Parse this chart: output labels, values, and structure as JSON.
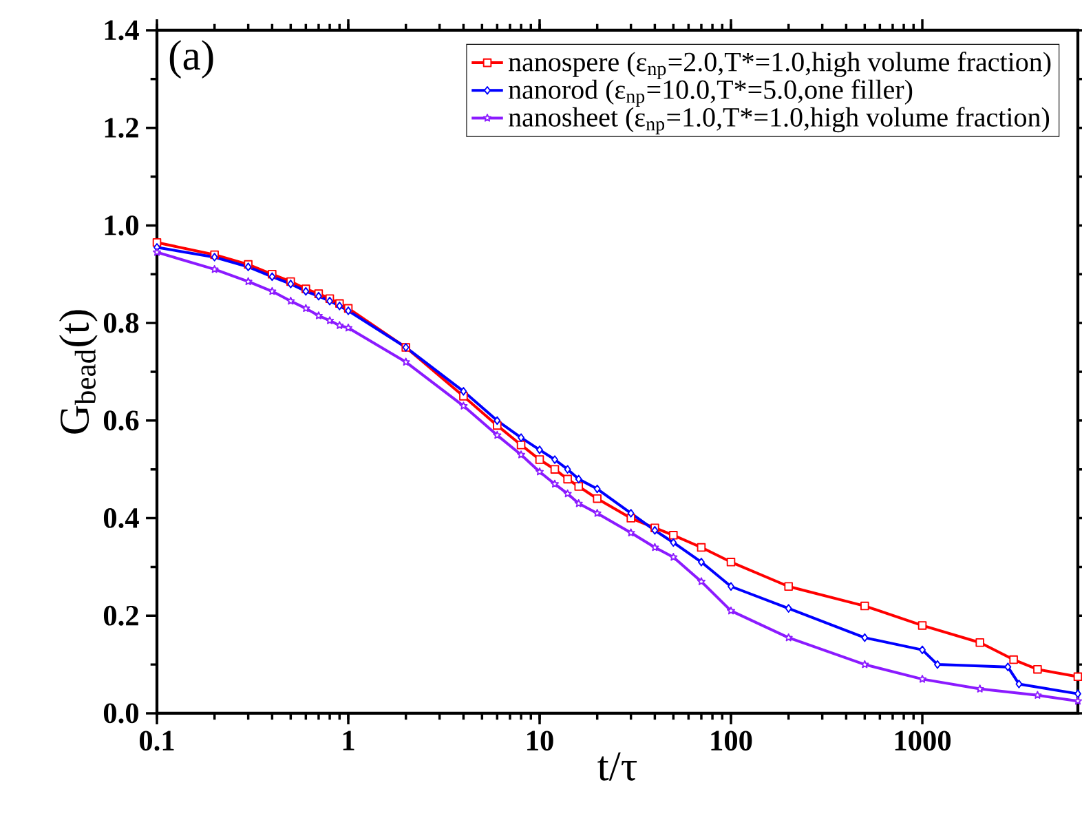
{
  "chart_data": {
    "type": "line",
    "xlabel": "t/τ",
    "ylabel": "G$_{bead}$(t)",
    "log": "x",
    "xlim": [
      0.1,
      6500
    ],
    "ylim": [
      0,
      1.4
    ],
    "xticks": [
      0.1,
      1,
      10,
      100,
      1000
    ],
    "yticks": [
      {
        "value": 0,
        "label": "0.0"
      },
      0.2,
      0.4,
      0.6,
      0.8,
      {
        "value": 1,
        "label": "1.0"
      },
      1.2,
      1.4
    ],
    "legend": "top right",
    "grid": false,
    "annotations": [
      "(a)"
    ],
    "series": [
      {
        "name": "nanospere (ε$_{np}$=2.0,T*=1.0,high volume fraction)",
        "color": "#ff0000",
        "marker": "square",
        "x": [
          0.1,
          0.2,
          0.3,
          0.4,
          0.5,
          0.6,
          0.7,
          0.8,
          0.9,
          1,
          2,
          4,
          6,
          8,
          10,
          12,
          14,
          16,
          20,
          30,
          40,
          50,
          70,
          100,
          200,
          500,
          1000,
          2000,
          3000,
          4000,
          6500
        ],
        "values": [
          0.965,
          0.94,
          0.92,
          0.9,
          0.885,
          0.87,
          0.86,
          0.85,
          0.84,
          0.83,
          0.75,
          0.65,
          0.59,
          0.55,
          0.52,
          0.5,
          0.48,
          0.465,
          0.44,
          0.4,
          0.38,
          0.365,
          0.34,
          0.31,
          0.26,
          0.22,
          0.18,
          0.145,
          0.11,
          0.09,
          0.075
        ]
      },
      {
        "name": "nanorod (ε$_{np}$=10.0,T*=5.0,one filler)",
        "color": "#0000ff",
        "marker": "diamond",
        "x": [
          0.1,
          0.2,
          0.3,
          0.4,
          0.5,
          0.6,
          0.7,
          0.8,
          0.9,
          1,
          2,
          4,
          6,
          8,
          10,
          12,
          14,
          16,
          20,
          30,
          40,
          50,
          70,
          100,
          200,
          500,
          1000,
          1200,
          2800,
          3200,
          6500
        ],
        "values": [
          0.955,
          0.935,
          0.915,
          0.895,
          0.88,
          0.865,
          0.855,
          0.845,
          0.835,
          0.825,
          0.75,
          0.66,
          0.6,
          0.565,
          0.54,
          0.52,
          0.5,
          0.48,
          0.46,
          0.41,
          0.375,
          0.35,
          0.31,
          0.26,
          0.215,
          0.155,
          0.13,
          0.1,
          0.095,
          0.06,
          0.04
        ]
      },
      {
        "name": "nanosheet (ε$_{np}$=1.0,T*=1.0,high volume fraction)",
        "color": "#8b1aff",
        "marker": "star",
        "x": [
          0.1,
          0.2,
          0.3,
          0.4,
          0.5,
          0.6,
          0.7,
          0.8,
          0.9,
          1,
          2,
          4,
          6,
          8,
          10,
          12,
          14,
          16,
          20,
          30,
          40,
          50,
          70,
          100,
          200,
          500,
          1000,
          2000,
          4000,
          6500
        ],
        "values": [
          0.945,
          0.91,
          0.885,
          0.865,
          0.845,
          0.83,
          0.815,
          0.805,
          0.795,
          0.79,
          0.72,
          0.63,
          0.57,
          0.53,
          0.495,
          0.47,
          0.45,
          0.43,
          0.41,
          0.37,
          0.34,
          0.32,
          0.27,
          0.21,
          0.155,
          0.1,
          0.07,
          0.05,
          0.037,
          0.025
        ]
      }
    ]
  }
}
